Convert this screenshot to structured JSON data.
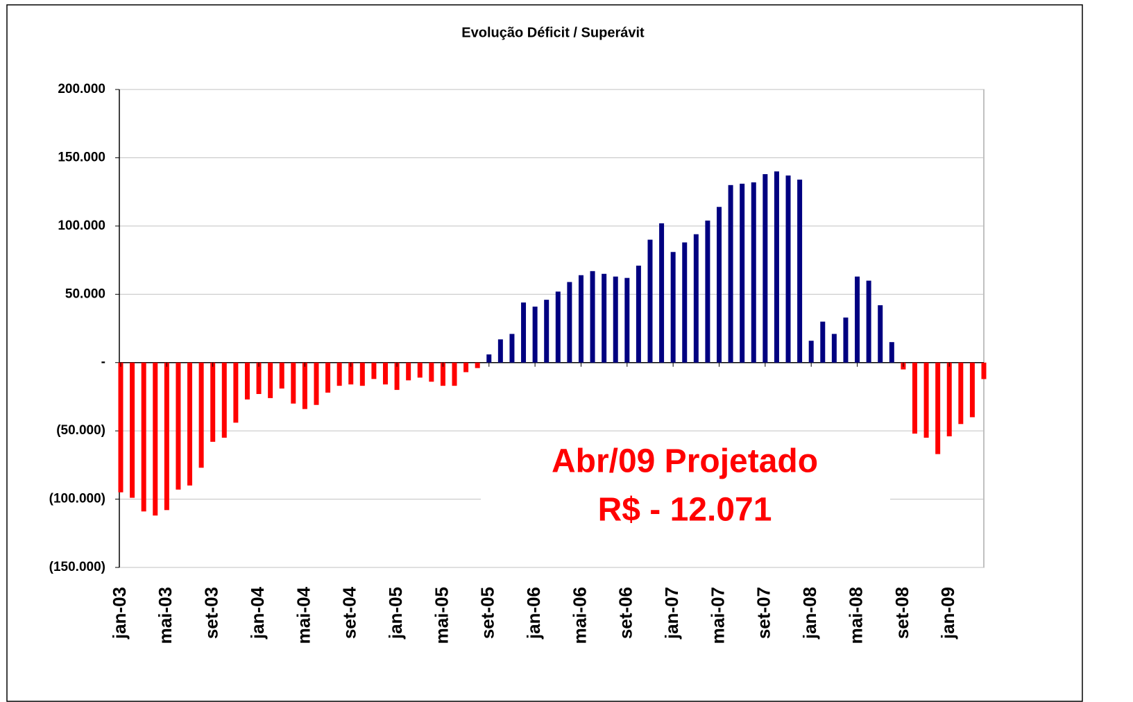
{
  "chart_data": {
    "type": "bar",
    "title": "Evolução Déficit / Superávit",
    "categories": [
      "jan-03",
      null,
      null,
      null,
      "mai-03",
      null,
      null,
      null,
      "set-03",
      null,
      null,
      null,
      "jan-04",
      null,
      null,
      null,
      "mai-04",
      null,
      null,
      null,
      "set-04",
      null,
      null,
      null,
      "jan-05",
      null,
      null,
      null,
      "mai-05",
      null,
      null,
      null,
      "set-05",
      null,
      null,
      null,
      "jan-06",
      null,
      null,
      null,
      "mai-06",
      null,
      null,
      null,
      "set-06",
      null,
      null,
      null,
      "jan-07",
      null,
      null,
      null,
      "mai-07",
      null,
      null,
      null,
      "set-07",
      null,
      null,
      null,
      "jan-08",
      null,
      null,
      null,
      "mai-08",
      null,
      null,
      null,
      "set-08",
      null,
      null,
      null,
      "jan-09",
      null,
      null,
      null
    ],
    "values": [
      -95000,
      -99000,
      -109000,
      -112000,
      -108000,
      -93000,
      -90000,
      -77000,
      -58000,
      -55000,
      -44000,
      -27000,
      -23000,
      -26000,
      -19000,
      -30000,
      -34000,
      -31000,
      -22000,
      -17000,
      -16000,
      -17000,
      -12000,
      -16000,
      -20000,
      -13000,
      -11000,
      -14000,
      -17000,
      -17000,
      -7000,
      -4000,
      6000,
      17000,
      21000,
      44000,
      41000,
      46000,
      52000,
      59000,
      64000,
      67000,
      65000,
      63000,
      62000,
      71000,
      90000,
      102000,
      81000,
      88000,
      94000,
      104000,
      114000,
      130000,
      131000,
      132000,
      138000,
      140000,
      137000,
      134000,
      16000,
      30000,
      21000,
      33000,
      63000,
      60000,
      42000,
      15000,
      -5000,
      -52000,
      -55000,
      -67000,
      -54000,
      -45000,
      -40000,
      -12071
    ],
    "positive_color": "#000080",
    "negative_color": "#ff0000",
    "ylim": [
      -150000,
      200000
    ],
    "yticks": [
      {
        "value": -150000,
        "label": "(150.000)"
      },
      {
        "value": -100000,
        "label": "(100.000)"
      },
      {
        "value": -50000,
        "label": "(50.000)"
      },
      {
        "value": 0,
        "label": "-"
      },
      {
        "value": 50000,
        "label": "50.000"
      },
      {
        "value": 100000,
        "label": "100.000"
      },
      {
        "value": 150000,
        "label": "150.000"
      },
      {
        "value": 200000,
        "label": "200.000"
      }
    ],
    "grid": true,
    "annotation": [
      "Abr/09 Projetado",
      "R$ - 12.071"
    ],
    "annotation_color": "#ff0000"
  }
}
